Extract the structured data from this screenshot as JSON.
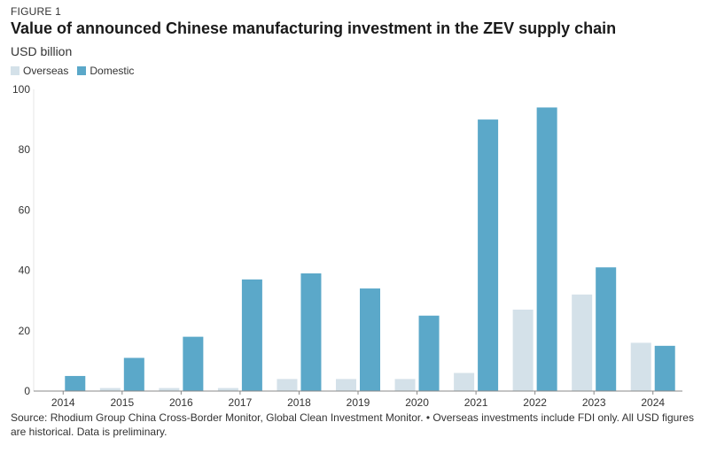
{
  "figure_label": "FIGURE 1",
  "chart_data": {
    "type": "bar",
    "title": "Value of announced Chinese manufacturing investment in the ZEV supply chain",
    "ylabel": "USD billion",
    "xlabel": "",
    "ylim": [
      0,
      100
    ],
    "yticks": [
      0,
      20,
      40,
      60,
      80,
      100
    ],
    "categories": [
      "2014",
      "2015",
      "2016",
      "2017",
      "2018",
      "2019",
      "2020",
      "2021",
      "2022",
      "2023",
      "2024"
    ],
    "series": [
      {
        "name": "Overseas",
        "color": "#d4e1e9",
        "values": [
          0,
          1,
          1,
          1,
          4,
          4,
          4,
          6,
          27,
          32,
          16
        ]
      },
      {
        "name": "Domestic",
        "color": "#5ba8c9",
        "values": [
          5,
          11,
          18,
          37,
          39,
          34,
          25,
          90,
          94,
          41,
          15
        ]
      }
    ],
    "legend_position": "top-left"
  },
  "source_note": "Source: Rhodium Group China Cross-Border Monitor, Global Clean Investment Monitor. • Overseas investments include FDI only. All USD figures are historical. Data is preliminary."
}
